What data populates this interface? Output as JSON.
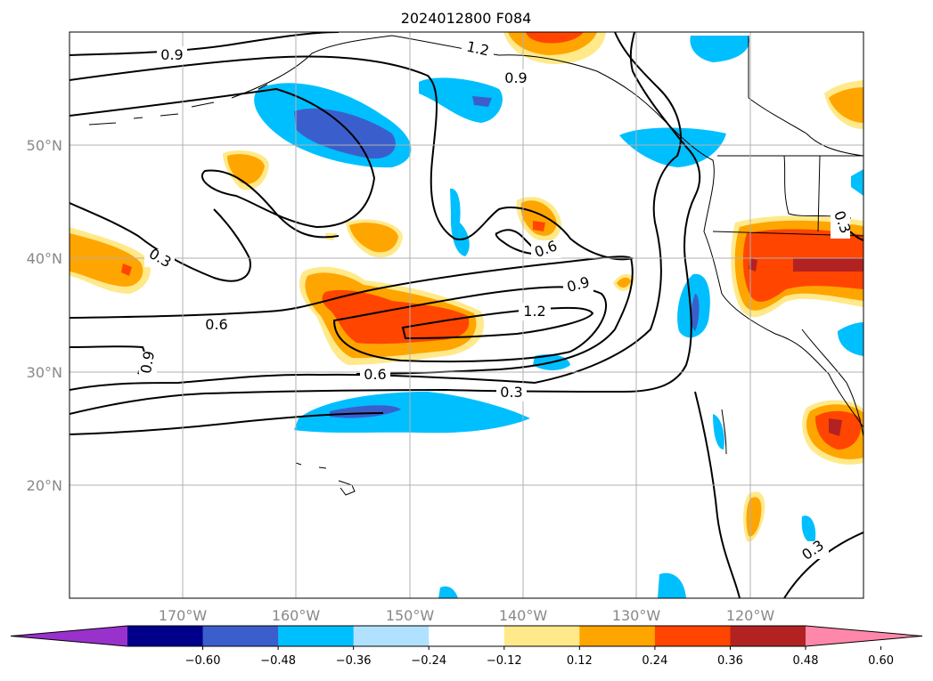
{
  "title": "2024012800 F084",
  "map": {
    "projection": "cylindrical",
    "lon_range": [
      -180,
      -110
    ],
    "lat_range": [
      10,
      60
    ],
    "gridlines": true,
    "lat_labels": [
      "50°N",
      "40°N",
      "30°N",
      "20°N"
    ],
    "lon_labels": [
      "170°W",
      "160°W",
      "150°W",
      "140°W",
      "130°W",
      "120°W"
    ]
  },
  "colorbar": {
    "extend": "both",
    "tick_labels": [
      "−0.60",
      "−0.48",
      "−0.36",
      "−0.24",
      "−0.12",
      "0.12",
      "0.24",
      "0.36",
      "0.48",
      "0.60"
    ],
    "colors": [
      "#9932cc",
      "#00008b",
      "#3a5fcd",
      "#00bfff",
      "#b0e2ff",
      "#ffffff",
      "#ffe98a",
      "#ffa500",
      "#ff4500",
      "#b22222",
      "#ff88aa"
    ]
  },
  "contour_labels": [
    "0.9",
    "1.2",
    "0.9",
    "0.3",
    "0.6",
    "0.9",
    "0.6",
    "1.2",
    "0.9",
    "0.6",
    "0.3",
    "0.3",
    "0.3"
  ]
}
